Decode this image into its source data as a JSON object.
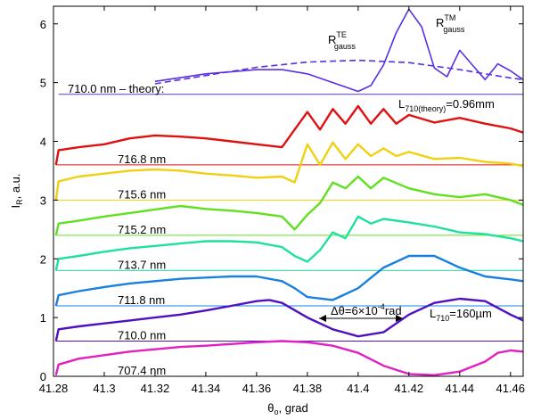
{
  "chart_data": {
    "type": "line",
    "xlabel": "θ_o, grad",
    "ylabel": "I_R, a.u.",
    "xlim": [
      41.28,
      41.465
    ],
    "ylim": [
      0,
      6.3
    ],
    "xticks": [
      "41.28",
      "41.3",
      "41.32",
      "41.34",
      "41.36",
      "41.38",
      "41.4",
      "41.42",
      "41.44",
      "41.46"
    ],
    "yticks": [
      "0",
      "1",
      "2",
      "3",
      "4",
      "5",
      "6"
    ],
    "grid": false,
    "baselines": [
      {
        "label": "707.4 nm",
        "y": 0.0,
        "color": "#e020c0"
      },
      {
        "label": "710.0 nm",
        "y": 0.6,
        "color": "#5010c0"
      },
      {
        "label": "711.8 nm",
        "y": 1.2,
        "color": "#1a80e0"
      },
      {
        "label": "713.7 nm",
        "y": 1.8,
        "color": "#20e0a0"
      },
      {
        "label": "715.2 nm",
        "y": 2.4,
        "color": "#60e020"
      },
      {
        "label": "715.6 nm",
        "y": 3.0,
        "color": "#f0d010"
      },
      {
        "label": "716.8 nm",
        "y": 3.6,
        "color": "#e01010"
      },
      {
        "label": "710.0 nm – theory:",
        "y": 4.8,
        "color": "#5a30e0"
      }
    ],
    "annotations": {
      "rte_main": "R",
      "rte_sup": "TE",
      "rte_sub": "gauss",
      "rtm_main": "R",
      "rtm_sup": "TM",
      "rtm_sub": "gauss",
      "ltheory_main": "L",
      "ltheory_sub": "710(theory)",
      "ltheory_val": "=0.96mm",
      "l710_main": "L",
      "l710_sub": "710",
      "l710_val": "=160µm",
      "dtheta_main": "Δθ=6×10",
      "dtheta_sup": "-4",
      "dtheta_unit": "rad"
    },
    "series": [
      {
        "label": "707.4 nm",
        "color": "#e020c0",
        "x": [
          41.281,
          41.282,
          41.29,
          41.3,
          41.31,
          41.32,
          41.33,
          41.34,
          41.35,
          41.36,
          41.37,
          41.38,
          41.39,
          41.4,
          41.41,
          41.42,
          41.43,
          41.44,
          41.45,
          41.455,
          41.46,
          41.465
        ],
        "y": [
          0.02,
          0.2,
          0.3,
          0.36,
          0.42,
          0.46,
          0.5,
          0.52,
          0.55,
          0.58,
          0.6,
          0.58,
          0.52,
          0.4,
          0.18,
          0.04,
          0.02,
          0.08,
          0.25,
          0.4,
          0.44,
          0.42
        ]
      },
      {
        "label": "710.0 nm",
        "color": "#5010c0",
        "x": [
          41.281,
          41.282,
          41.29,
          41.3,
          41.31,
          41.32,
          41.33,
          41.34,
          41.35,
          41.36,
          41.365,
          41.37,
          41.38,
          41.39,
          41.4,
          41.41,
          41.42,
          41.43,
          41.44,
          41.45,
          41.46,
          41.465
        ],
        "y": [
          0.6,
          0.8,
          0.85,
          0.9,
          0.95,
          1.0,
          1.05,
          1.12,
          1.2,
          1.28,
          1.3,
          1.25,
          1.0,
          0.8,
          0.68,
          0.75,
          1.05,
          1.25,
          1.32,
          1.28,
          1.05,
          0.95
        ]
      },
      {
        "label": "711.8 nm",
        "color": "#1a80e0",
        "x": [
          41.281,
          41.282,
          41.29,
          41.3,
          41.31,
          41.32,
          41.33,
          41.34,
          41.35,
          41.36,
          41.37,
          41.375,
          41.38,
          41.39,
          41.4,
          41.41,
          41.42,
          41.43,
          41.44,
          41.45,
          41.46,
          41.465
        ],
        "y": [
          1.2,
          1.38,
          1.45,
          1.52,
          1.58,
          1.62,
          1.66,
          1.68,
          1.7,
          1.7,
          1.62,
          1.5,
          1.35,
          1.3,
          1.5,
          1.85,
          2.05,
          2.05,
          1.85,
          1.7,
          1.65,
          1.62
        ]
      },
      {
        "label": "713.7 nm",
        "color": "#20e0a0",
        "x": [
          41.281,
          41.282,
          41.29,
          41.3,
          41.31,
          41.32,
          41.33,
          41.34,
          41.35,
          41.36,
          41.37,
          41.375,
          41.38,
          41.385,
          41.39,
          41.395,
          41.4,
          41.405,
          41.41,
          41.42,
          41.43,
          41.44,
          41.45,
          41.46,
          41.465
        ],
        "y": [
          1.8,
          2.0,
          2.05,
          2.12,
          2.18,
          2.22,
          2.26,
          2.3,
          2.3,
          2.28,
          2.2,
          2.05,
          1.95,
          2.15,
          2.45,
          2.35,
          2.72,
          2.6,
          2.68,
          2.62,
          2.55,
          2.45,
          2.42,
          2.35,
          2.3
        ]
      },
      {
        "label": "715.2 nm",
        "color": "#60e020",
        "x": [
          41.281,
          41.282,
          41.29,
          41.3,
          41.31,
          41.32,
          41.33,
          41.34,
          41.35,
          41.36,
          41.37,
          41.375,
          41.38,
          41.385,
          41.39,
          41.395,
          41.4,
          41.405,
          41.41,
          41.42,
          41.43,
          41.44,
          41.45,
          41.46,
          41.465
        ],
        "y": [
          2.4,
          2.6,
          2.65,
          2.72,
          2.78,
          2.84,
          2.9,
          2.85,
          2.82,
          2.78,
          2.72,
          2.5,
          2.75,
          2.95,
          3.3,
          3.2,
          3.4,
          3.2,
          3.38,
          3.2,
          3.1,
          3.05,
          3.1,
          3.0,
          2.92
        ]
      },
      {
        "label": "715.6 nm",
        "color": "#f0d010",
        "x": [
          41.281,
          41.282,
          41.29,
          41.3,
          41.31,
          41.32,
          41.33,
          41.34,
          41.35,
          41.36,
          41.37,
          41.375,
          41.38,
          41.385,
          41.39,
          41.395,
          41.4,
          41.405,
          41.41,
          41.415,
          41.42,
          41.43,
          41.44,
          41.45,
          41.46,
          41.465
        ],
        "y": [
          3.0,
          3.32,
          3.4,
          3.45,
          3.5,
          3.52,
          3.5,
          3.45,
          3.42,
          3.38,
          3.4,
          3.3,
          3.95,
          3.6,
          3.98,
          3.7,
          3.95,
          3.75,
          3.88,
          3.75,
          3.82,
          3.7,
          3.72,
          3.65,
          3.62,
          3.58
        ]
      },
      {
        "label": "716.8 nm",
        "color": "#e01010",
        "x": [
          41.281,
          41.282,
          41.29,
          41.3,
          41.31,
          41.32,
          41.33,
          41.34,
          41.35,
          41.36,
          41.37,
          41.375,
          41.38,
          41.385,
          41.39,
          41.395,
          41.4,
          41.405,
          41.41,
          41.415,
          41.42,
          41.43,
          41.44,
          41.45,
          41.46,
          41.465
        ],
        "y": [
          3.6,
          3.85,
          3.9,
          3.95,
          4.05,
          4.1,
          4.08,
          4.05,
          4.0,
          3.95,
          3.9,
          4.2,
          4.5,
          4.2,
          4.55,
          4.3,
          4.6,
          4.3,
          4.55,
          4.3,
          4.45,
          4.32,
          4.4,
          4.3,
          4.22,
          4.15
        ]
      },
      {
        "label": "R_gauss^TE",
        "color": "#5a30e0",
        "dashed": true,
        "x": [
          41.32,
          41.34,
          41.36,
          41.38,
          41.4,
          41.42,
          41.44,
          41.46,
          41.465
        ],
        "y": [
          4.98,
          5.12,
          5.26,
          5.35,
          5.38,
          5.34,
          5.22,
          5.08,
          5.05
        ]
      },
      {
        "label": "R_gauss^TM",
        "color": "#5a30e0",
        "x": [
          41.32,
          41.34,
          41.36,
          41.37,
          41.38,
          41.39,
          41.4,
          41.405,
          41.41,
          41.415,
          41.42,
          41.425,
          41.43,
          41.435,
          41.44,
          41.445,
          41.45,
          41.455,
          41.46,
          41.465
        ],
        "y": [
          5.02,
          5.15,
          5.22,
          5.22,
          5.15,
          5.0,
          4.85,
          4.95,
          5.3,
          5.85,
          6.25,
          5.95,
          5.25,
          5.1,
          5.55,
          5.3,
          5.05,
          5.32,
          5.2,
          5.05
        ]
      }
    ]
  }
}
